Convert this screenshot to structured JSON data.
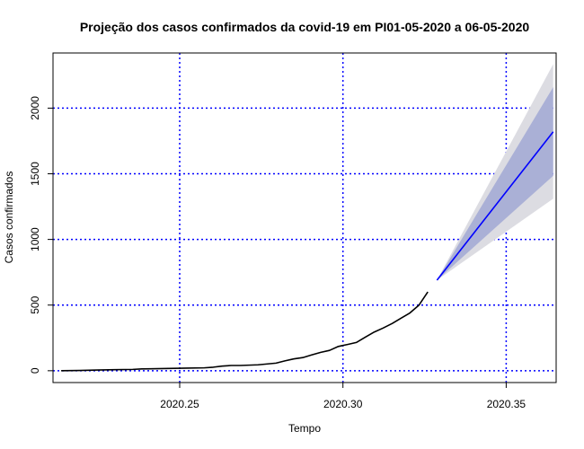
{
  "chart_data": {
    "type": "line",
    "title": "Projeção dos casos confirmados da covid-19 em PI01-05-2020 a 06-05-2020",
    "xlabel": "Tempo",
    "ylabel": "Casos confirmados",
    "xlim": [
      2020.2112,
      2020.3653
    ],
    "ylim": [
      -90,
      2420
    ],
    "xticks": [
      2020.25,
      2020.3,
      2020.35
    ],
    "xtick_labels": [
      "2020.25",
      "2020.30",
      "2020.35"
    ],
    "yticks": [
      0,
      500,
      1000,
      1500,
      2000
    ],
    "ytick_labels": [
      "0",
      "500",
      "1000",
      "1500",
      "2000"
    ],
    "grid": true,
    "grid_color": "#0000ff",
    "grid_style": "dotted",
    "series": [
      {
        "role": "observed",
        "color": "#000000",
        "x": [
          2020.2137,
          2020.2192,
          2020.2247,
          2020.2301,
          2020.2356,
          2020.2384,
          2020.2411,
          2020.2466,
          2020.2521,
          2020.2575,
          2020.2603,
          2020.263,
          2020.2658,
          2020.2685,
          2020.274,
          2020.2795,
          2020.2822,
          2020.2849,
          2020.2877,
          2020.2904,
          2020.2932,
          2020.2959,
          2020.2986,
          2020.3014,
          2020.3041,
          2020.3068,
          2020.3096,
          2020.3123,
          2020.3151,
          2020.3178,
          2020.3205,
          2020.3233,
          2020.326
        ],
        "y": [
          0,
          2,
          5,
          8,
          10,
          14,
          15,
          17,
          20,
          22,
          27,
          35,
          40,
          40,
          45,
          58,
          75,
          90,
          100,
          120,
          140,
          155,
          185,
          200,
          215,
          255,
          295,
          325,
          360,
          400,
          440,
          500,
          600
        ]
      },
      {
        "role": "forecast",
        "color": "#0000ff",
        "x": [
          2020.3288,
          2020.3644
        ],
        "y": [
          690,
          1820
        ],
        "band_80": {
          "color": "#aab0d6",
          "lower": [
            690,
            1485
          ],
          "upper": [
            690,
            2160
          ]
        },
        "band_95": {
          "color": "#dcdce2",
          "lower": [
            690,
            1310
          ],
          "upper": [
            690,
            2335
          ]
        }
      }
    ]
  }
}
